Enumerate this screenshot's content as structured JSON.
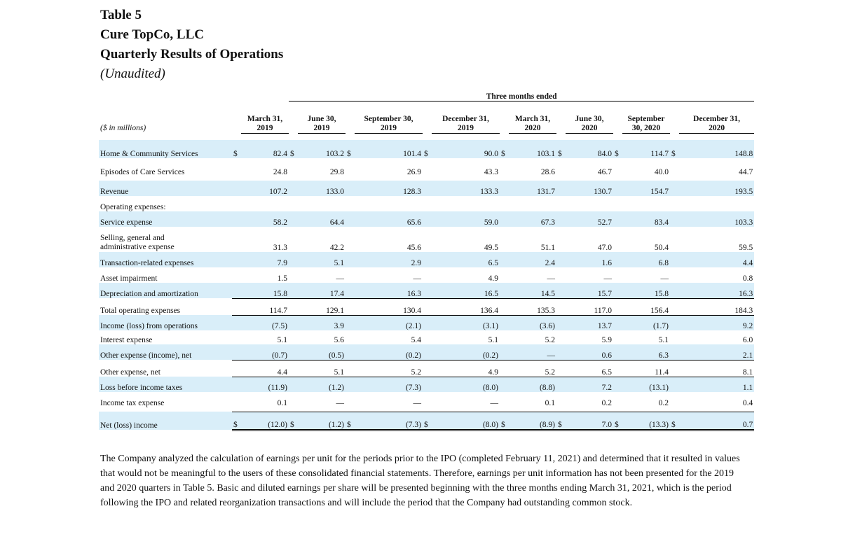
{
  "heading": {
    "table_no": "Table 5",
    "company": "Cure TopCo, LLC",
    "title": "Quarterly Results of Operations",
    "unaudited": "(Unaudited)"
  },
  "table": {
    "group_header": "Three months ended",
    "units_label": "($ in millions)",
    "currency": "$",
    "periods": [
      [
        "March 31,",
        "2019"
      ],
      [
        "June 30,",
        "2019"
      ],
      [
        "September 30,",
        "2019"
      ],
      [
        "December 31,",
        "2019"
      ],
      [
        "March 31,",
        "2020"
      ],
      [
        "June 30,",
        "2020"
      ],
      [
        "September",
        "30, 2020"
      ],
      [
        "December 31,",
        "2020"
      ]
    ],
    "rows": {
      "hcs": {
        "label": "Home & Community Services",
        "values": [
          "82.4",
          "103.2",
          "101.4",
          "90.0",
          "103.1",
          "84.0",
          "114.7",
          "148.8"
        ]
      },
      "eocs": {
        "label": "Episodes of Care Services",
        "values": [
          "24.8",
          "29.8",
          "26.9",
          "43.3",
          "28.6",
          "46.7",
          "40.0",
          "44.7"
        ]
      },
      "revenue": {
        "label": "Revenue",
        "values": [
          "107.2",
          "133.0",
          "128.3",
          "133.3",
          "131.7",
          "130.7",
          "154.7",
          "193.5"
        ]
      },
      "opex_header": {
        "label": "Operating expenses:"
      },
      "service": {
        "label": "Service expense",
        "values": [
          "58.2",
          "64.4",
          "65.6",
          "59.0",
          "67.3",
          "52.7",
          "83.4",
          "103.3"
        ]
      },
      "sga": {
        "label_1": "Selling, general and",
        "label_2": "administrative expense",
        "values": [
          "31.3",
          "42.2",
          "45.6",
          "49.5",
          "51.1",
          "47.0",
          "50.4",
          "59.5"
        ]
      },
      "transaction": {
        "label": "Transaction-related expenses",
        "values": [
          "7.9",
          "5.1",
          "2.9",
          "6.5",
          "2.4",
          "1.6",
          "6.8",
          "4.4"
        ]
      },
      "impairment": {
        "label": "Asset impairment",
        "values": [
          "1.5",
          "—",
          "—",
          "4.9",
          "—",
          "—",
          "—",
          "0.8"
        ]
      },
      "da": {
        "label": "Depreciation and amortization",
        "values": [
          "15.8",
          "17.4",
          "16.3",
          "16.5",
          "14.5",
          "15.7",
          "15.8",
          "16.3"
        ]
      },
      "total_opex": {
        "label": "Total operating expenses",
        "values": [
          "114.7",
          "129.1",
          "130.4",
          "136.4",
          "135.3",
          "117.0",
          "156.4",
          "184.3"
        ]
      },
      "ops_income": {
        "label": "Income (loss) from operations",
        "values": [
          "(7.5)",
          "3.9",
          "(2.1)",
          "(3.1)",
          "(3.6)",
          "13.7",
          "(1.7)",
          "9.2"
        ]
      },
      "interest": {
        "label": "Interest expense",
        "values": [
          "5.1",
          "5.6",
          "5.4",
          "5.1",
          "5.2",
          "5.9",
          "5.1",
          "6.0"
        ]
      },
      "other_income": {
        "label": "Other expense (income), net",
        "values": [
          "(0.7)",
          "(0.5)",
          "(0.2)",
          "(0.2)",
          "—",
          "0.6",
          "6.3",
          "2.1"
        ]
      },
      "other_net": {
        "label": "Other expense, net",
        "values": [
          "4.4",
          "5.1",
          "5.2",
          "4.9",
          "5.2",
          "6.5",
          "11.4",
          "8.1"
        ]
      },
      "pretax": {
        "label": "Loss before income taxes",
        "values": [
          "(11.9)",
          "(1.2)",
          "(7.3)",
          "(8.0)",
          "(8.8)",
          "7.2",
          "(13.1)",
          "1.1"
        ]
      },
      "tax": {
        "label": "Income tax expense",
        "values": [
          "0.1",
          "—",
          "—",
          "—",
          "0.1",
          "0.2",
          "0.2",
          "0.4"
        ]
      },
      "net": {
        "label": "Net (loss) income",
        "values": [
          "(12.0)",
          "(1.2)",
          "(7.3)",
          "(8.0)",
          "(8.9)",
          "7.0",
          "(13.3)",
          "0.7"
        ]
      }
    }
  },
  "footnote": "The Company analyzed the calculation of earnings per unit for the periods prior to the IPO (completed February 11, 2021) and determined that it resulted in values that would not be meaningful to the users of these consolidated financial statements. Therefore, earnings per unit information has not been presented for the 2019 and 2020 quarters in Table 5. Basic and diluted earnings per share will be presented beginning with the three months ending March 31, 2021, which is the period following the IPO and related reorganization transactions and will include the period that the Company had outstanding common stock."
}
